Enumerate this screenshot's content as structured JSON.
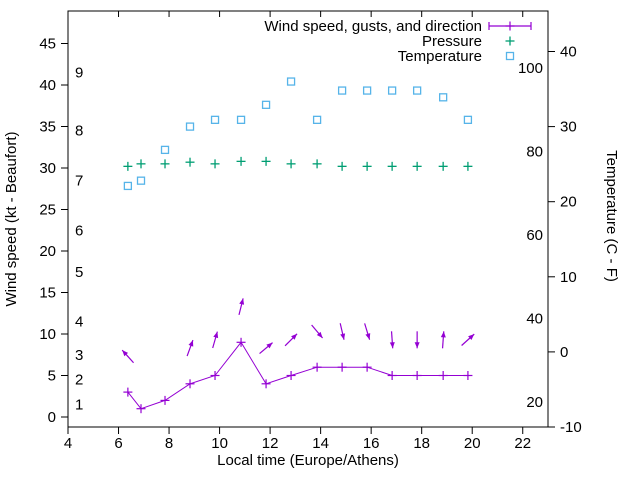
{
  "chart_data": {
    "type": "line",
    "xlabel": "Local time (Europe/Athens)",
    "ylabel_left": "Wind speed (kt - Beaufort)",
    "ylabel_right": "Temperature (C - F)",
    "x_range": [
      4,
      23
    ],
    "x_ticks": [
      4,
      6,
      8,
      10,
      12,
      14,
      16,
      18,
      20,
      22
    ],
    "y_left_kt_ticks": [
      0,
      5,
      10,
      15,
      20,
      25,
      30,
      35,
      40,
      45
    ],
    "y_left_kt_range": [
      -1.2,
      48.9
    ],
    "beaufort_scale_labels": [
      {
        "label": "1",
        "kt": 1.5
      },
      {
        "label": "2",
        "kt": 4.5
      },
      {
        "label": "3",
        "kt": 7.5
      },
      {
        "label": "4",
        "kt": 11.5
      },
      {
        "label": "5",
        "kt": 17.5
      },
      {
        "label": "6",
        "kt": 22.5
      },
      {
        "label": "7",
        "kt": 28.5
      },
      {
        "label": "8",
        "kt": 34.5
      },
      {
        "label": "9",
        "kt": 41.5
      }
    ],
    "y_right_c_ticks": [
      -10,
      0,
      10,
      20,
      30,
      40
    ],
    "y_right_c_range": [
      -10,
      45.4
    ],
    "fahrenheit_labels": [
      20,
      40,
      60,
      80,
      100
    ],
    "grid": false,
    "legend_position": "top-right-inside",
    "legend": [
      {
        "label": "Wind speed, gusts, and direction",
        "marker": "errorbar",
        "color": "#9400d3"
      },
      {
        "label": "Pressure",
        "marker": "plus",
        "color": "#009e73"
      },
      {
        "label": "Temperature",
        "marker": "square",
        "color": "#56b4e9"
      }
    ],
    "colors": {
      "wind": "#9400d3",
      "pressure": "#009e73",
      "temperature": "#56b4e9",
      "axis": "#000000",
      "background": "#ffffff"
    },
    "series": {
      "time_hours": [
        6.37,
        6.89,
        7.84,
        8.83,
        9.82,
        10.85,
        11.84,
        12.83,
        13.86,
        14.85,
        15.84,
        16.83,
        17.82,
        18.85,
        19.83
      ],
      "wind_speed_kt": [
        3,
        1,
        2,
        4,
        5,
        9,
        4,
        5,
        6,
        6,
        6,
        5,
        5,
        5,
        5
      ],
      "wind_dir_deg_cw_from_up": [
        -42,
        null,
        null,
        20,
        16,
        14,
        50,
        45,
        140,
        167,
        163,
        176,
        180,
        4,
        48
      ],
      "pressure_on_left_axis": [
        30.2,
        30.5,
        30.5,
        30.7,
        30.5,
        30.8,
        30.8,
        30.5,
        30.5,
        30.2,
        30.2,
        30.2,
        30.2,
        30.2,
        30.2
      ],
      "temperature_c": [
        22.1,
        22.8,
        26.9,
        30.0,
        30.9,
        30.9,
        32.9,
        36.0,
        30.9,
        34.8,
        34.8,
        34.8,
        34.8,
        33.9,
        30.9
      ]
    }
  }
}
